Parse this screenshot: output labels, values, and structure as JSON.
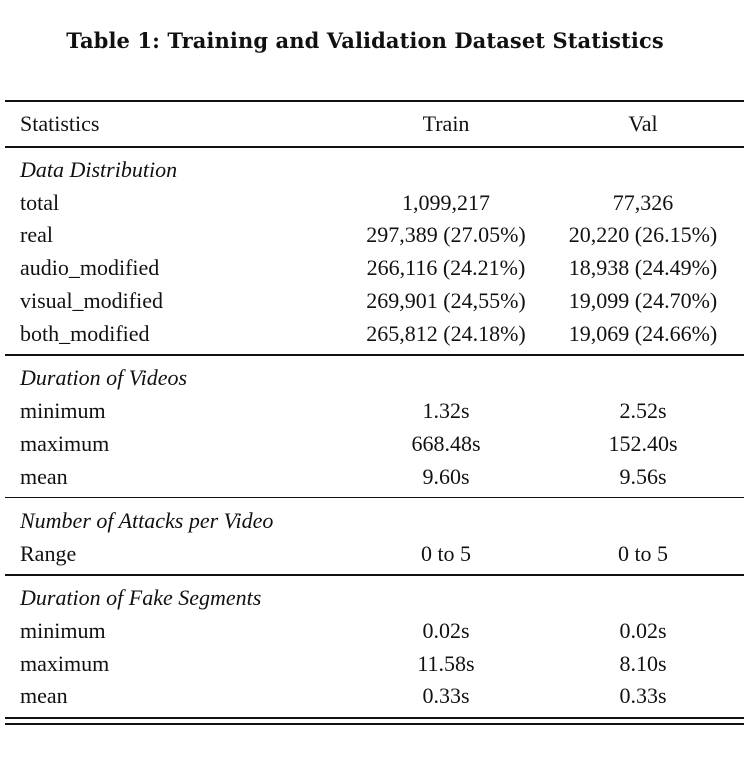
{
  "caption": "Table 1: Training and Validation Dataset Statistics",
  "table": {
    "headers": [
      "Statistics",
      "Train",
      "Val"
    ],
    "sections": [
      {
        "title": "Data Distribution",
        "rows": [
          {
            "label": "total",
            "train": "1,099,217",
            "val": "77,326"
          },
          {
            "label": "real",
            "train": "297,389 (27.05%)",
            "val": "20,220 (26.15%)"
          },
          {
            "label": "audio_modified",
            "train": "266,116 (24.21%)",
            "val": "18,938 (24.49%)"
          },
          {
            "label": "visual_modified",
            "train": "269,901 (24,55%)",
            "val": "19,099 (24.70%)"
          },
          {
            "label": "both_modified",
            "train": "265,812 (24.18%)",
            "val": "19,069 (24.66%)"
          }
        ]
      },
      {
        "title": "Duration of Videos",
        "rows": [
          {
            "label": "minimum",
            "train": "1.32s",
            "val": "2.52s"
          },
          {
            "label": "maximum",
            "train": "668.48s",
            "val": "152.40s"
          },
          {
            "label": "mean",
            "train": "9.60s",
            "val": "9.56s"
          }
        ]
      },
      {
        "title": "Number of Attacks per Video",
        "rows": [
          {
            "label": "Range",
            "train": "0 to 5",
            "val": "0 to 5"
          }
        ]
      },
      {
        "title": "Duration of Fake Segments",
        "rows": [
          {
            "label": "minimum",
            "train": "0.02s",
            "val": "0.02s"
          },
          {
            "label": "maximum",
            "train": "11.58s",
            "val": "8.10s"
          },
          {
            "label": "mean",
            "train": "0.33s",
            "val": "0.33s"
          }
        ]
      }
    ]
  }
}
